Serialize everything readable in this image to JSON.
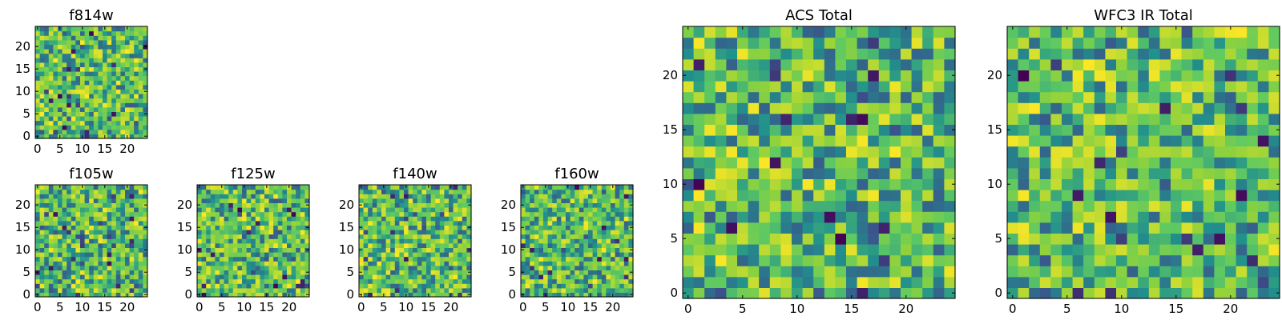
{
  "chart_data": [
    {
      "type": "heatmap",
      "title": "f814w",
      "grid_size": 25,
      "xlim": [
        0,
        24
      ],
      "ylim": [
        0,
        24
      ],
      "xticks": [
        0,
        5,
        10,
        15,
        20
      ],
      "yticks": [
        0,
        5,
        10,
        15,
        20
      ],
      "xtick_labels": [
        "0",
        "5",
        "10",
        "15",
        "20"
      ],
      "ytick_labels": [
        "0",
        "5",
        "10",
        "15",
        "20"
      ],
      "colormap": "viridis",
      "seed": 11
    },
    {
      "type": "heatmap",
      "title": "f105w",
      "grid_size": 25,
      "xlim": [
        0,
        24
      ],
      "ylim": [
        0,
        24
      ],
      "xticks": [
        0,
        5,
        10,
        15,
        20
      ],
      "yticks": [
        0,
        5,
        10,
        15,
        20
      ],
      "xtick_labels": [
        "0",
        "5",
        "10",
        "15",
        "20"
      ],
      "ytick_labels": [
        "0",
        "5",
        "10",
        "15",
        "20"
      ],
      "colormap": "viridis",
      "seed": 23
    },
    {
      "type": "heatmap",
      "title": "f125w",
      "grid_size": 25,
      "xlim": [
        0,
        24
      ],
      "ylim": [
        0,
        24
      ],
      "xticks": [
        0,
        5,
        10,
        15,
        20
      ],
      "yticks": [
        0,
        5,
        10,
        15,
        20
      ],
      "xtick_labels": [
        "0",
        "5",
        "10",
        "15",
        "20"
      ],
      "ytick_labels": [
        "0",
        "5",
        "10",
        "15",
        "20"
      ],
      "colormap": "viridis",
      "seed": 37
    },
    {
      "type": "heatmap",
      "title": "f140w",
      "grid_size": 25,
      "xlim": [
        0,
        24
      ],
      "ylim": [
        0,
        24
      ],
      "xticks": [
        0,
        5,
        10,
        15,
        20
      ],
      "yticks": [
        0,
        5,
        10,
        15,
        20
      ],
      "xtick_labels": [
        "0",
        "5",
        "10",
        "15",
        "20"
      ],
      "ytick_labels": [
        "0",
        "5",
        "10",
        "15",
        "20"
      ],
      "colormap": "viridis",
      "seed": 41
    },
    {
      "type": "heatmap",
      "title": "f160w",
      "grid_size": 25,
      "xlim": [
        0,
        24
      ],
      "ylim": [
        0,
        24
      ],
      "xticks": [
        0,
        5,
        10,
        15,
        20
      ],
      "yticks": [
        0,
        5,
        10,
        15,
        20
      ],
      "xtick_labels": [
        "0",
        "5",
        "10",
        "15",
        "20"
      ],
      "ytick_labels": [
        "0",
        "5",
        "10",
        "15",
        "20"
      ],
      "colormap": "viridis",
      "seed": 53
    },
    {
      "type": "heatmap",
      "title": "ACS Total",
      "grid_size": 25,
      "xlim": [
        0,
        24
      ],
      "ylim": [
        0,
        24
      ],
      "xticks": [
        0,
        5,
        10,
        15,
        20
      ],
      "yticks": [
        0,
        5,
        10,
        15,
        20
      ],
      "xtick_labels": [
        "0",
        "5",
        "10",
        "15",
        "20"
      ],
      "ytick_labels": [
        "0",
        "5",
        "10",
        "15",
        "20"
      ],
      "colormap": "viridis",
      "seed": 67
    },
    {
      "type": "heatmap",
      "title": "WFC3 IR Total",
      "grid_size": 25,
      "xlim": [
        0,
        24
      ],
      "ylim": [
        0,
        24
      ],
      "xticks": [
        0,
        5,
        10,
        15,
        20
      ],
      "yticks": [
        0,
        5,
        10,
        15,
        20
      ],
      "xtick_labels": [
        "0",
        "5",
        "10",
        "15",
        "20"
      ],
      "ytick_labels": [
        "0",
        "5",
        "10",
        "15",
        "20"
      ],
      "colormap": "viridis",
      "seed": 79
    }
  ]
}
